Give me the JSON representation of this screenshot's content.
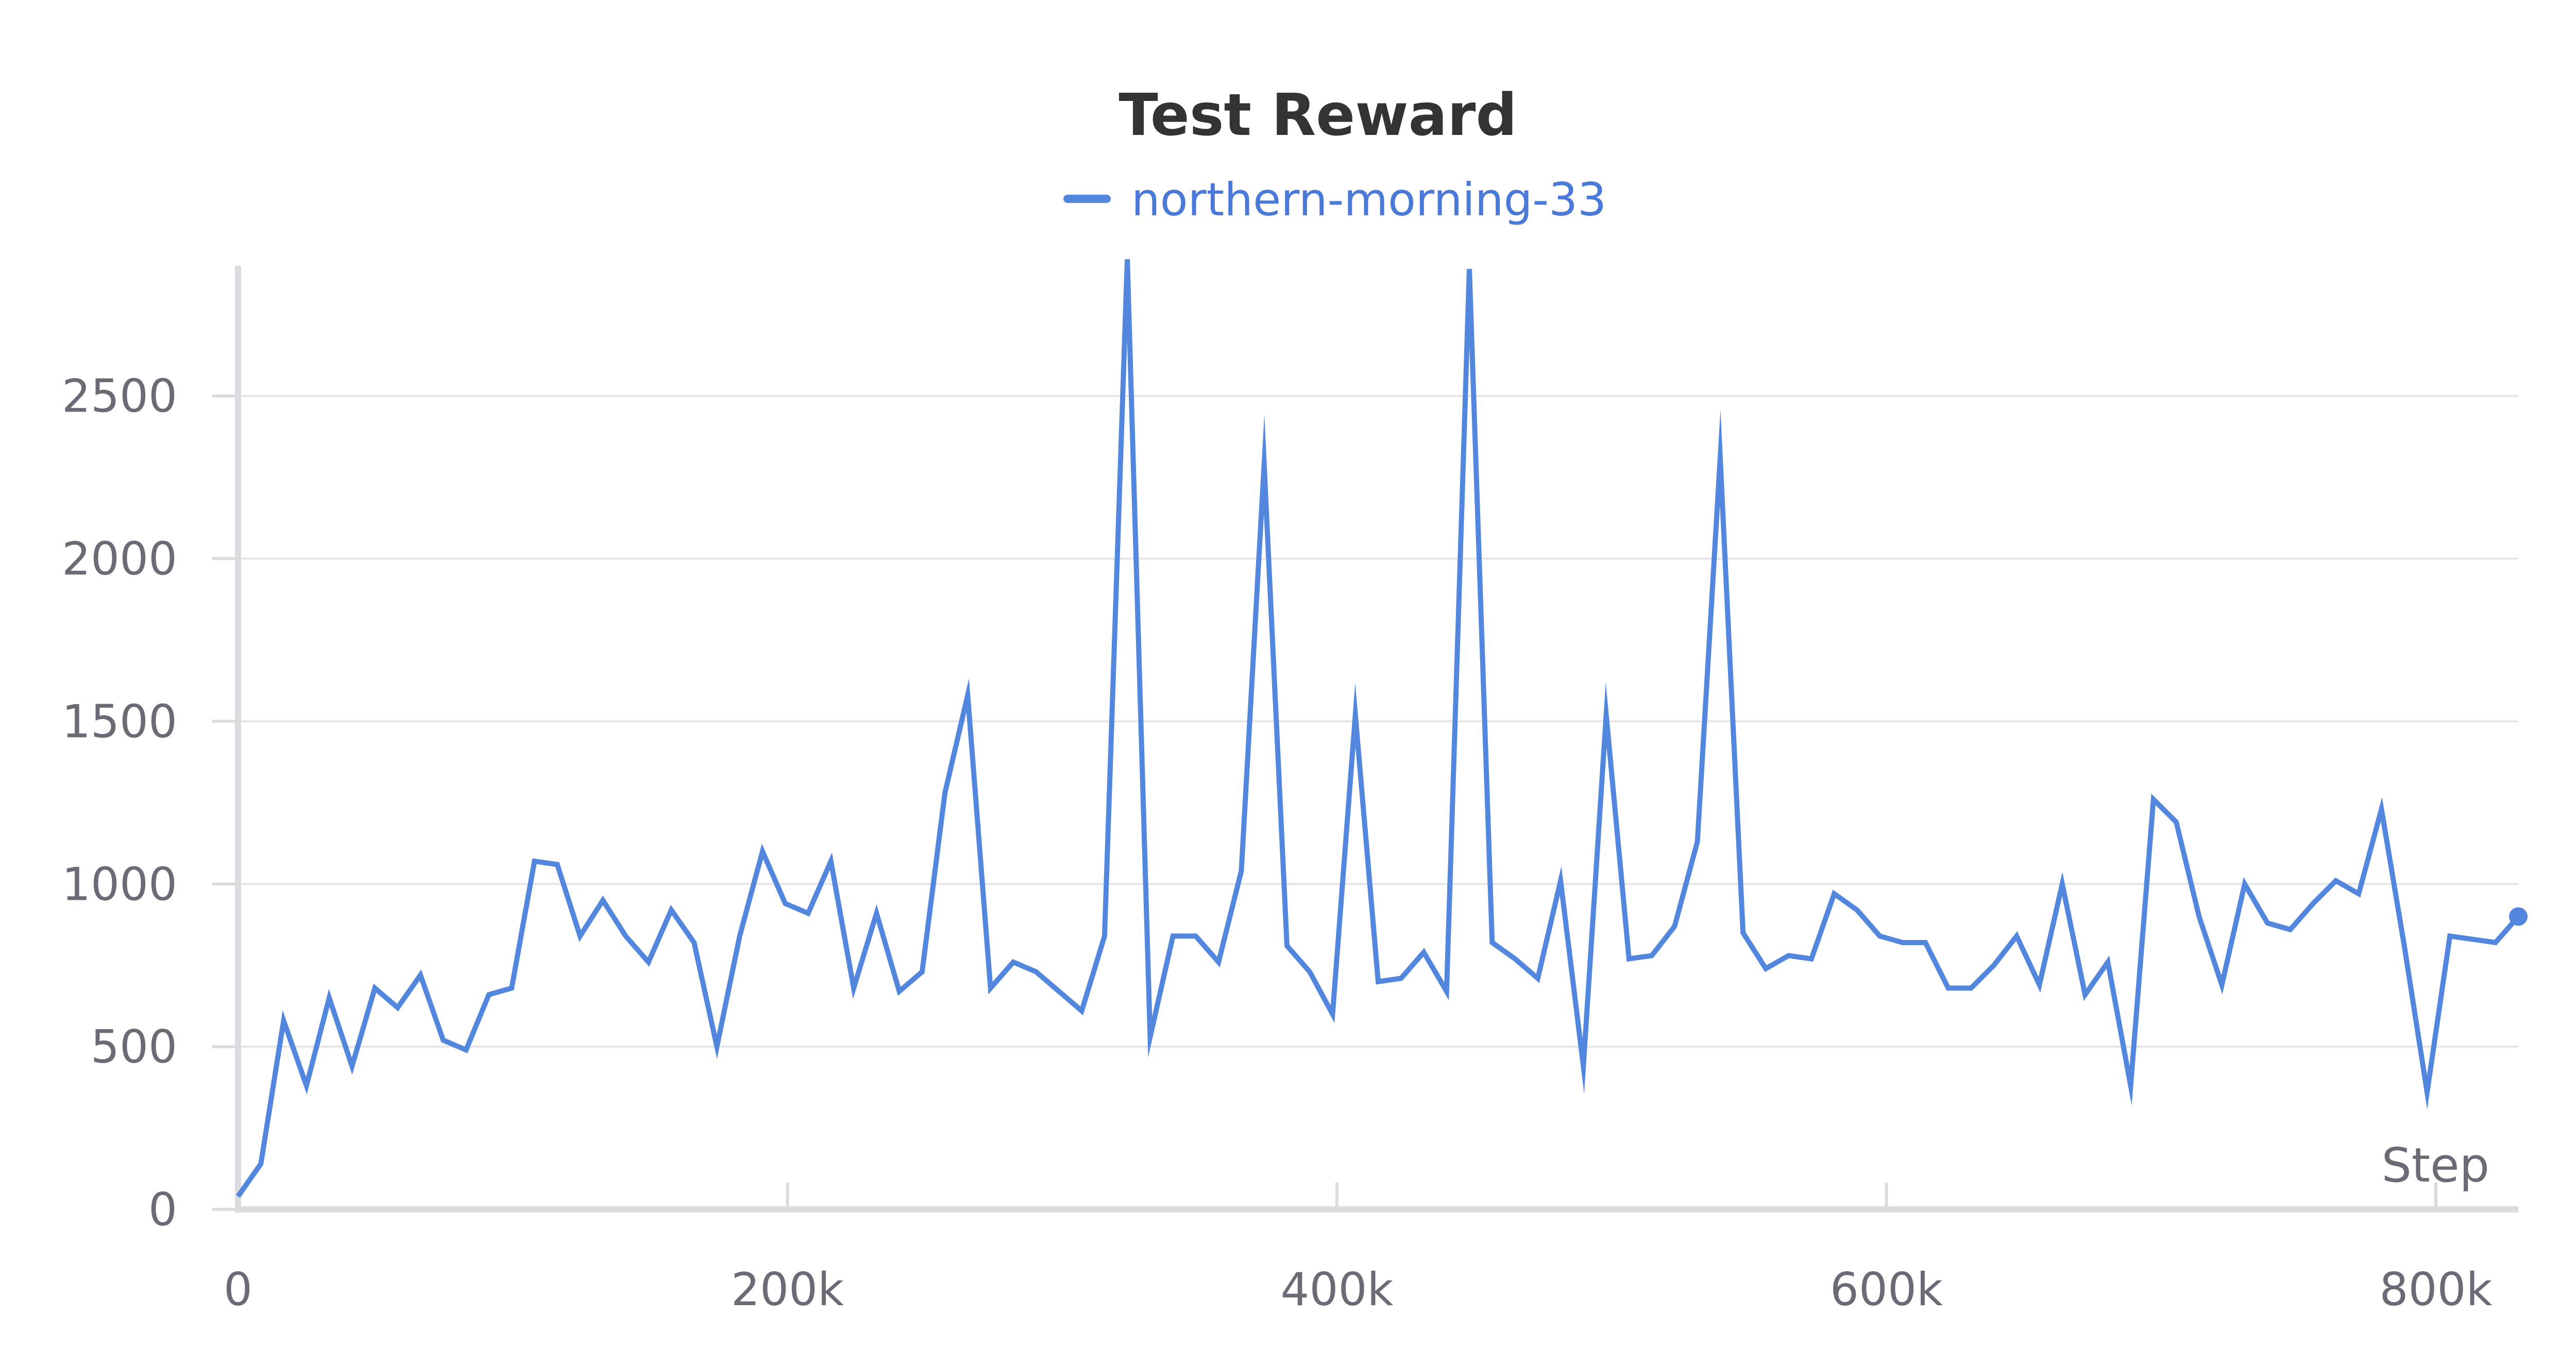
{
  "chart_data": {
    "type": "line",
    "title": "Test Reward",
    "xlabel": "Step",
    "ylabel": "",
    "xlim": [
      0,
      830000
    ],
    "ylim": [
      0,
      2900
    ],
    "yticks": [
      0,
      500,
      1000,
      1500,
      2000,
      2500
    ],
    "ytick_labels": [
      "0",
      "500",
      "1000",
      "1500",
      "2000",
      "2500"
    ],
    "xticks": [
      0,
      200000,
      400000,
      600000,
      800000
    ],
    "xtick_labels": [
      "0",
      "200k",
      "400k",
      "600k",
      "800k"
    ],
    "grid": true,
    "legend_position": "top-center",
    "colors": {
      "series": "#5387dd",
      "legend_text": "#4a79d8"
    },
    "series": [
      {
        "name": "northern-morning-33",
        "x": [
          0,
          8300,
          16600,
          24900,
          33200,
          41500,
          49800,
          58100,
          66400,
          74700,
          83000,
          91300,
          99600,
          107900,
          116200,
          124500,
          132800,
          141100,
          149400,
          157700,
          166000,
          174300,
          182600,
          190900,
          199200,
          207500,
          215800,
          224100,
          232400,
          240700,
          249000,
          257300,
          265600,
          273900,
          282200,
          290500,
          298800,
          307100,
          315400,
          323700,
          332000,
          340300,
          348600,
          356900,
          365200,
          373500,
          381800,
          390100,
          398400,
          406700,
          415000,
          423300,
          431600,
          439900,
          448200,
          456500,
          464800,
          473100,
          481400,
          489700,
          498000,
          506300,
          514600,
          522900,
          531200,
          539500,
          547800,
          556100,
          564400,
          572700,
          581000,
          589300,
          597600,
          605900,
          614200,
          622500,
          630800,
          639100,
          647400,
          655700,
          664000,
          672300,
          680600,
          688900,
          697200,
          705500,
          713800,
          722100,
          730400,
          738700,
          747000,
          755300,
          763600,
          771900,
          780200,
          788500,
          796800,
          805100,
          813400,
          821700,
          830000
        ],
        "values": [
          40,
          140,
          580,
          380,
          650,
          440,
          680,
          620,
          720,
          520,
          490,
          660,
          680,
          1070,
          1060,
          840,
          950,
          840,
          760,
          920,
          820,
          500,
          840,
          1100,
          940,
          910,
          1070,
          680,
          910,
          670,
          730,
          1280,
          1580,
          680,
          760,
          730,
          670,
          610,
          840,
          2920,
          530,
          840,
          840,
          760,
          1040,
          2290,
          810,
          730,
          600,
          1520,
          700,
          710,
          790,
          670,
          2890,
          820,
          770,
          710,
          1010,
          440,
          1520,
          770,
          780,
          870,
          1130,
          2310,
          850,
          740,
          780,
          770,
          970,
          920,
          840,
          820,
          820,
          680,
          680,
          750,
          840,
          690,
          1000,
          660,
          760,
          380,
          1260,
          1190,
          900,
          690,
          1000,
          880,
          860,
          940,
          1010,
          970,
          1230,
          810,
          360,
          840,
          830,
          820,
          900
        ]
      }
    ]
  }
}
